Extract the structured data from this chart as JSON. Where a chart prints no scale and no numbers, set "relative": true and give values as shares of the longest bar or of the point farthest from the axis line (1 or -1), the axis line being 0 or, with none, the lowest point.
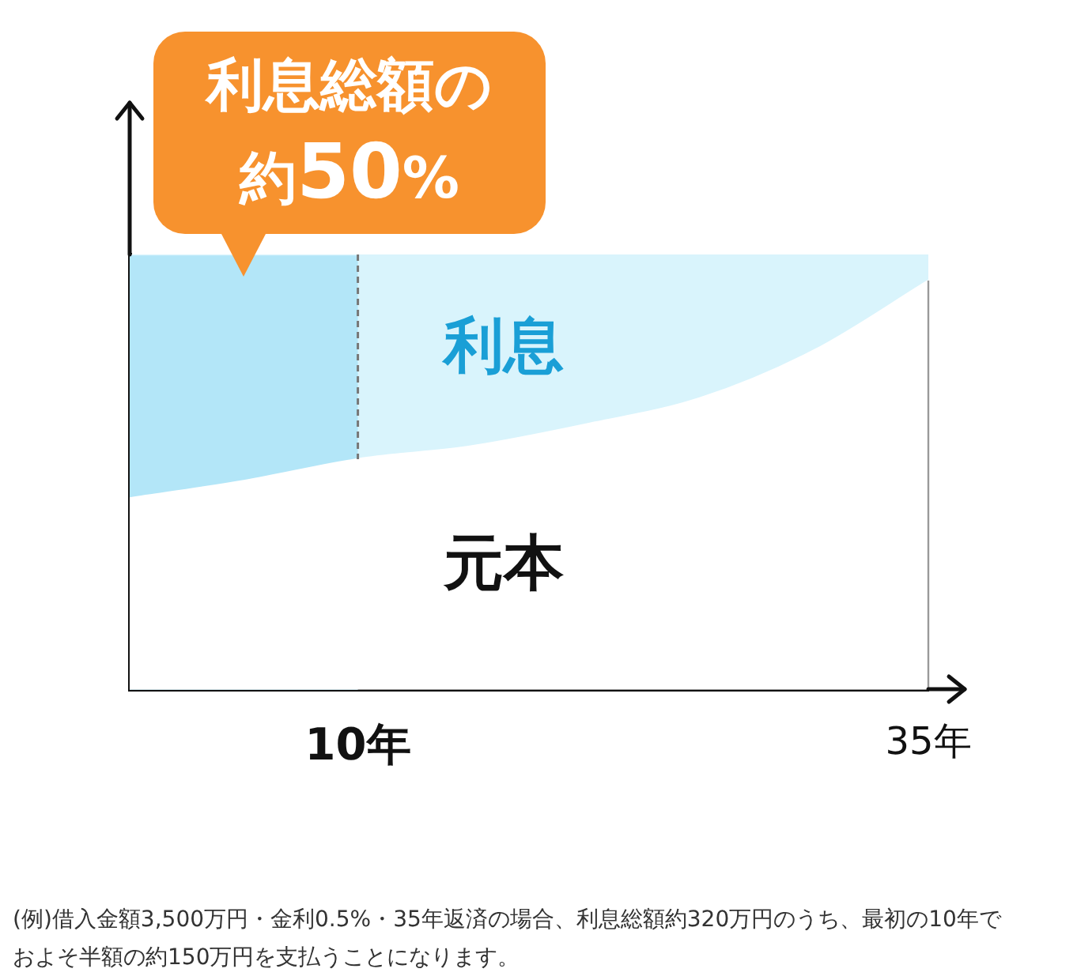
{
  "chart_data": {
    "type": "area",
    "stacked": true,
    "relative": true,
    "x": [
      0,
      5,
      10,
      15,
      20,
      25,
      30,
      35
    ],
    "series": [
      {
        "name": "元本",
        "color": "#ffffff",
        "values": [
          0.44,
          0.48,
          0.53,
          0.56,
          0.61,
          0.67,
          0.78,
          0.94
        ]
      },
      {
        "name": "利息",
        "color": "#d9f4fc",
        "values": [
          0.56,
          0.52,
          0.47,
          0.44,
          0.39,
          0.33,
          0.22,
          0.06
        ]
      }
    ],
    "xlim": [
      0,
      35
    ],
    "xticks": [
      {
        "value": 10,
        "label": "10年"
      },
      {
        "value": 35,
        "label": "35年"
      }
    ],
    "bands": [
      {
        "axis": "x",
        "from": 0,
        "to": 10,
        "color": "#b3e6f8"
      }
    ],
    "ref_lines": [
      {
        "axis": "x",
        "value": 10,
        "color": "#777777",
        "line_style": "dashed"
      }
    ],
    "annotations": [
      "利息総額の約50%",
      "(例)借入金額3,500万円・金利0.5%・35年返済の場合、利息総額約320万円のうち、最初の10年でおよそ半額の約150万円を支払うことになります。"
    ]
  }
}
